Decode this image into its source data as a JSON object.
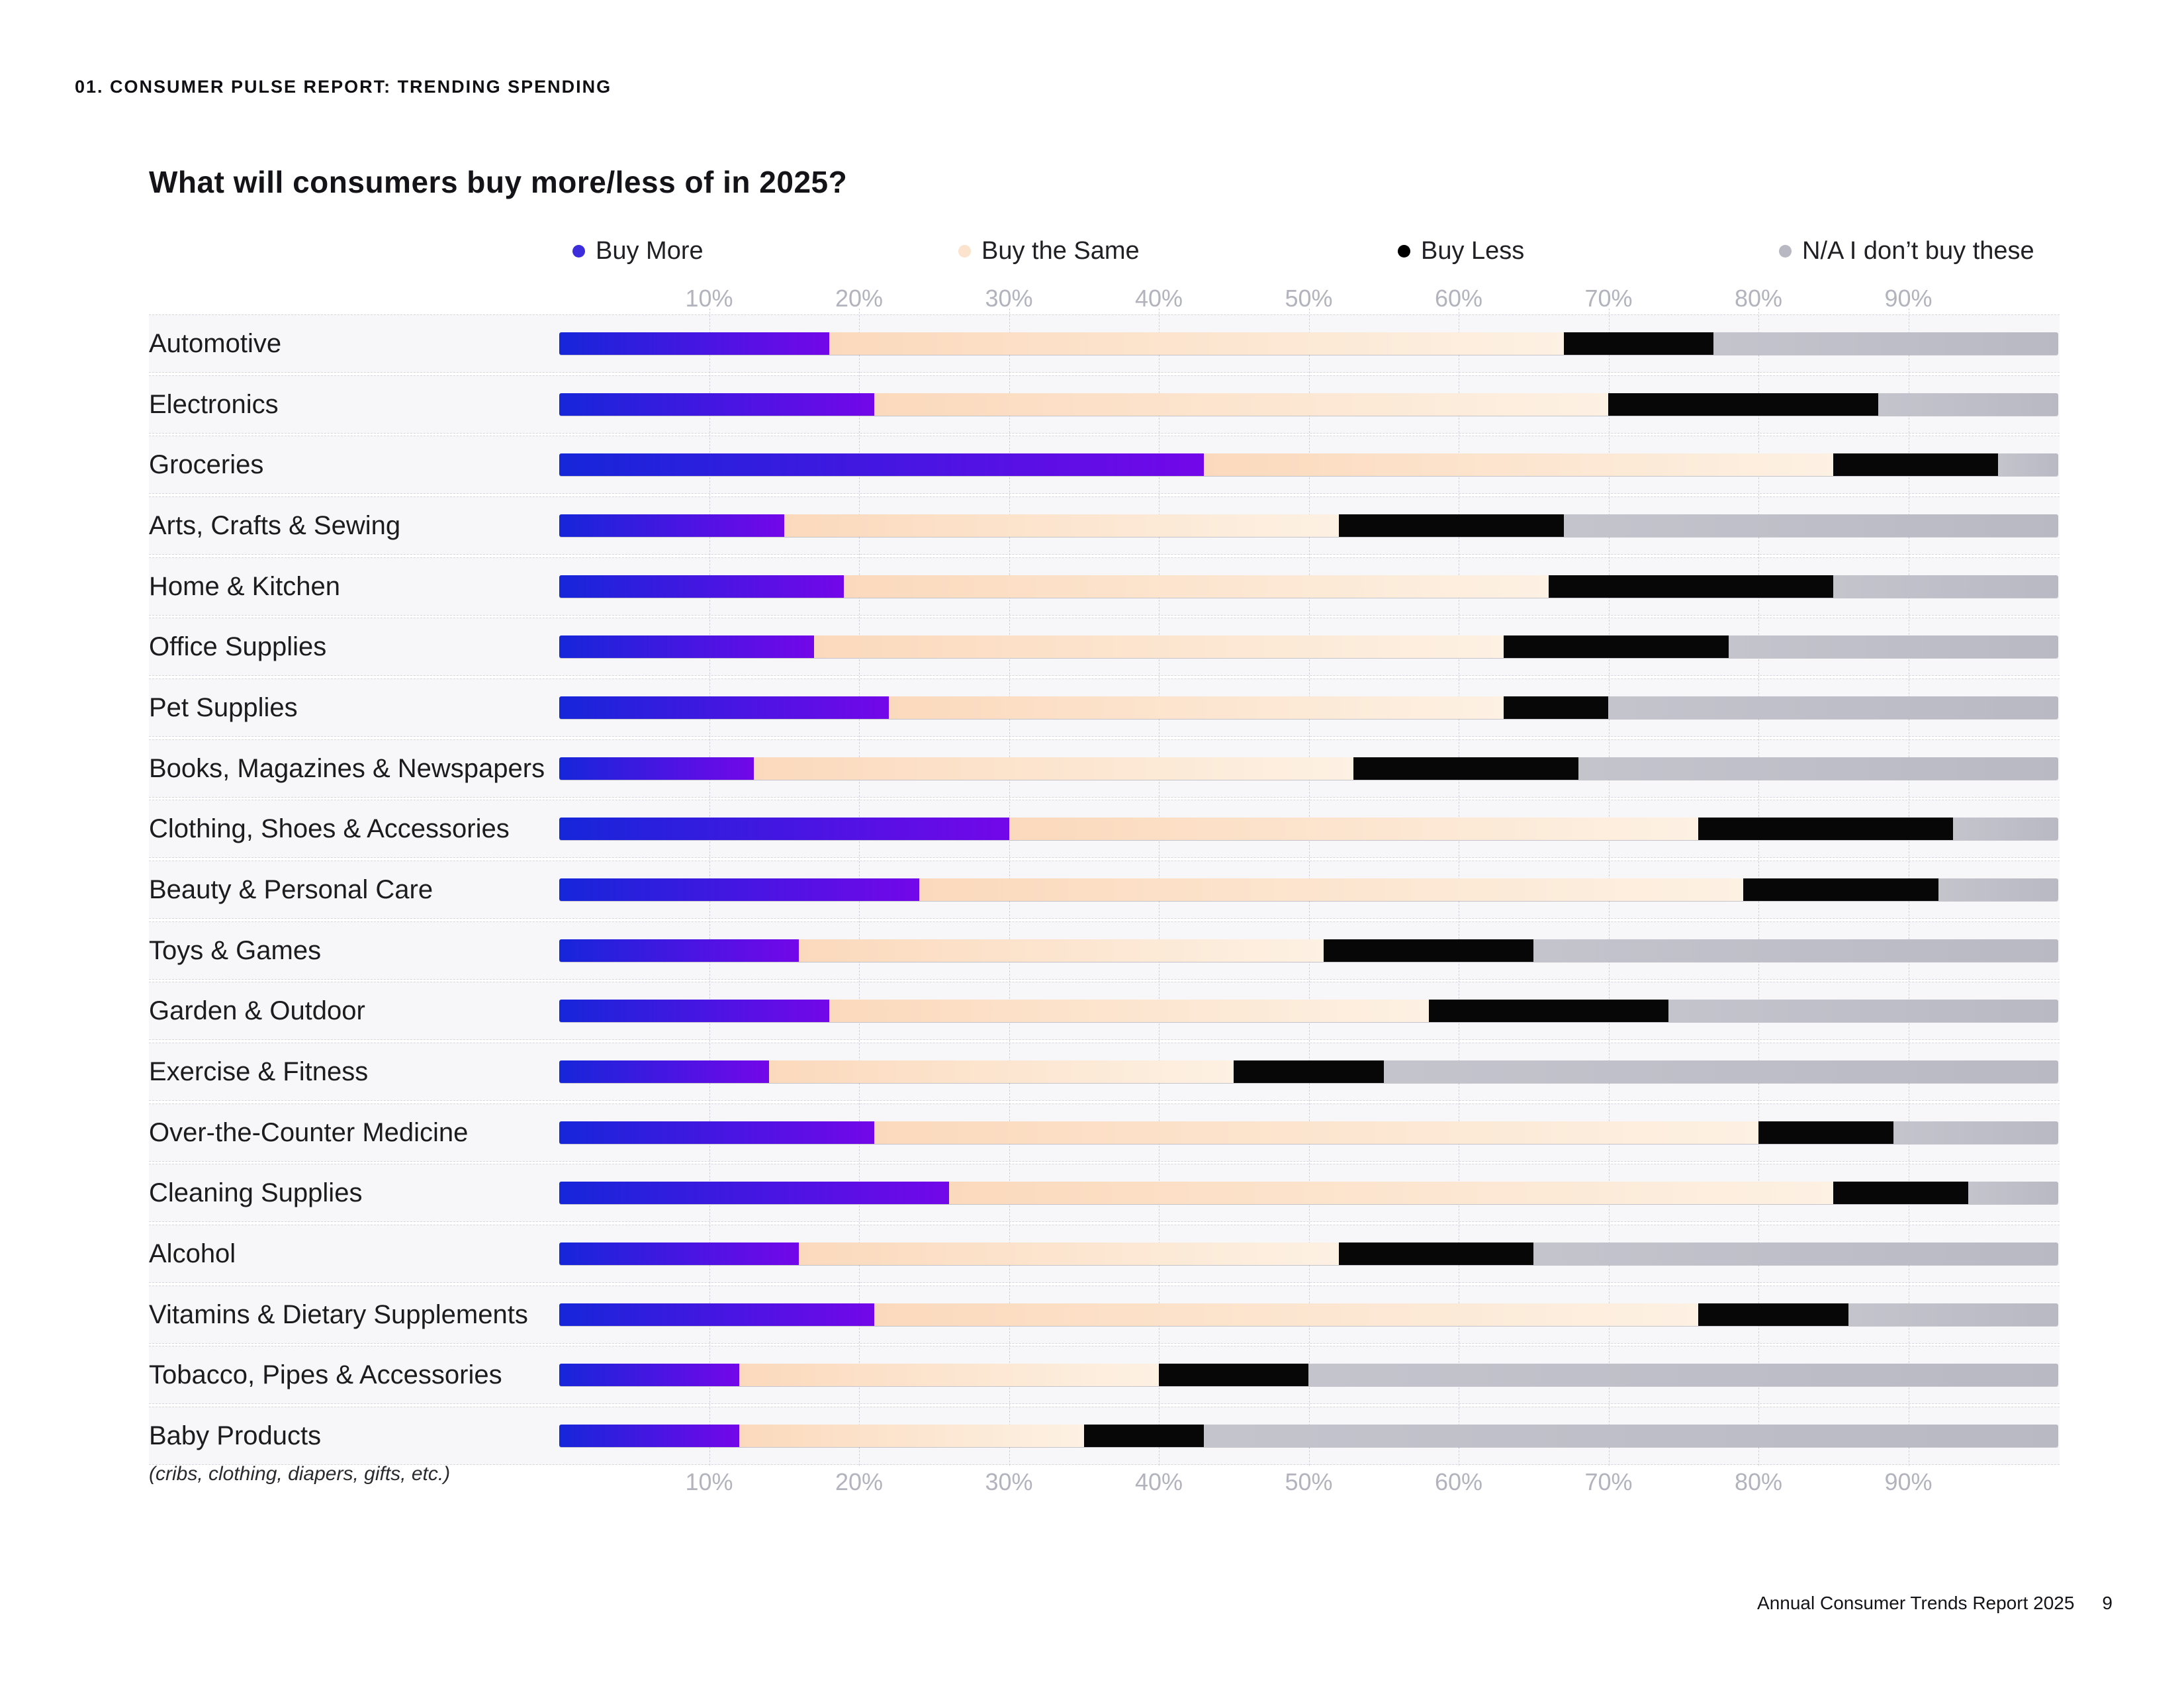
{
  "page": {
    "kicker": "01. CONSUMER PULSE REPORT: TRENDING SPENDING",
    "footer": {
      "report_name": "Annual Consumer Trends Report 2025",
      "page_number": "9"
    }
  },
  "chart_data": {
    "type": "bar",
    "stacked": true,
    "orientation": "horizontal",
    "title": "What will consumers buy more/less of in 2025?",
    "unit": "%",
    "xlim": [
      0,
      100
    ],
    "grid": "vertical-dashed",
    "legend_position": "top",
    "axis_ticks": [
      "10%",
      "20%",
      "30%",
      "40%",
      "50%",
      "60%",
      "70%",
      "80%",
      "90%"
    ],
    "legend": [
      {
        "label": "Buy More",
        "color": "#3c2cdb"
      },
      {
        "label": "Buy the Same",
        "color": "#fbe3cd"
      },
      {
        "label": "Buy Less",
        "color": "#000000"
      },
      {
        "label": "N/A I don’t buy these",
        "color": "#b8b8c3"
      }
    ],
    "categories": [
      "Automotive",
      "Electronics",
      "Groceries",
      "Arts, Crafts & Sewing",
      "Home & Kitchen",
      "Office Supplies",
      "Pet Supplies",
      "Books, Magazines & Newspapers",
      "Clothing, Shoes & Accessories",
      "Beauty & Personal Care",
      "Toys & Games",
      "Garden & Outdoor",
      "Exercise & Fitness",
      "Over-the-Counter Medicine",
      "Cleaning Supplies",
      "Alcohol",
      "Vitamins & Dietary Supplements",
      "Tobacco, Pipes & Accessories",
      "Baby Products"
    ],
    "category_note": {
      "category": "Baby Products",
      "note": "(cribs, clothing, diapers, gifts, etc.)"
    },
    "series": [
      {
        "name": "Buy More",
        "color": "#1626d9",
        "color2": "#7307e9",
        "values": [
          18,
          21,
          43,
          15,
          19,
          17,
          22,
          13,
          30,
          24,
          16,
          18,
          14,
          21,
          26,
          16,
          21,
          12,
          12
        ]
      },
      {
        "name": "Buy the Same",
        "color": "#fbd9bc",
        "color2": "#fdf1e3",
        "values": [
          49,
          49,
          42,
          37,
          47,
          46,
          41,
          40,
          46,
          55,
          35,
          40,
          31,
          59,
          59,
          36,
          55,
          28,
          23
        ]
      },
      {
        "name": "Buy Less",
        "color": "#070707",
        "color2": "#070707",
        "values": [
          10,
          18,
          11,
          15,
          19,
          15,
          7,
          15,
          17,
          13,
          14,
          16,
          10,
          9,
          9,
          13,
          10,
          10,
          8
        ]
      },
      {
        "name": "N/A I don’t buy these",
        "color": "#c4c4cd",
        "color2": "#b9b9c4",
        "values": [
          23,
          12,
          4,
          33,
          15,
          22,
          30,
          32,
          7,
          8,
          35,
          26,
          45,
          11,
          6,
          35,
          14,
          50,
          57
        ]
      }
    ],
    "layout": {
      "legend_x": [
        865,
        1448,
        2112,
        2688
      ],
      "row_top_start": 475,
      "row_pitch": 91.67
    }
  }
}
